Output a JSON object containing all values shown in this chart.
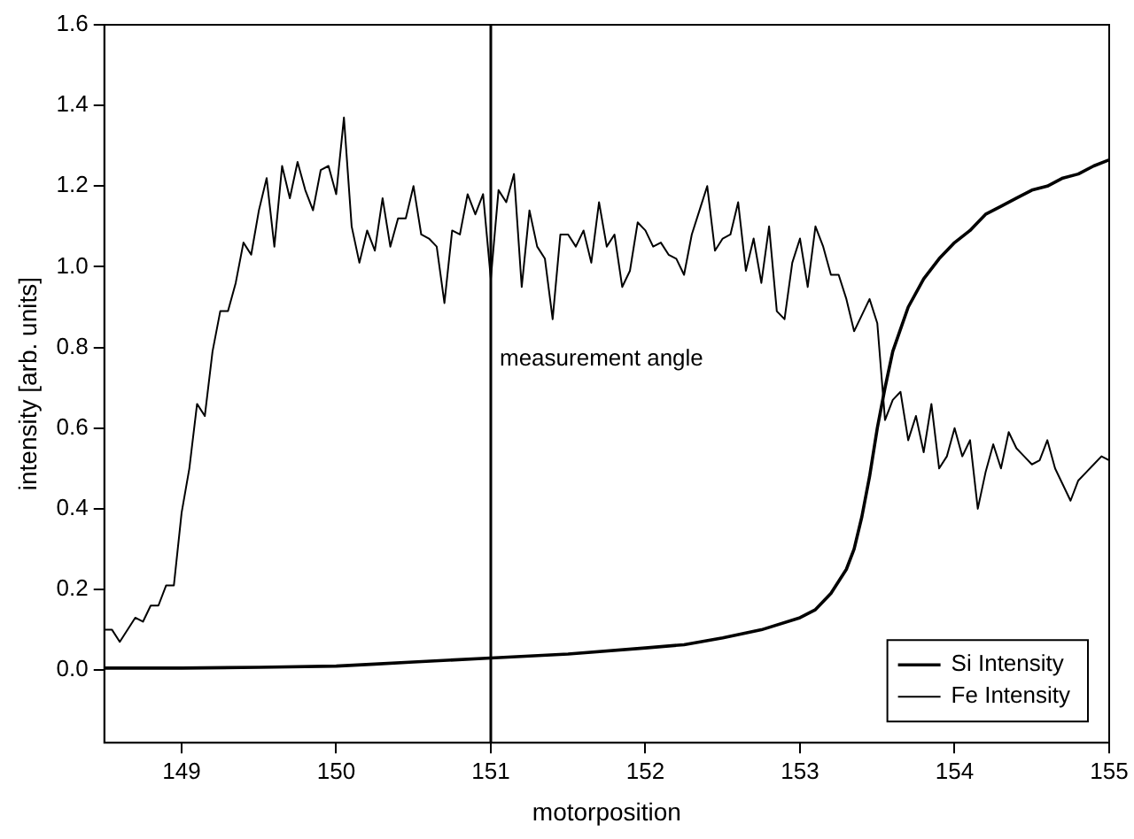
{
  "chart_data": {
    "type": "line",
    "xlabel": "motorposition",
    "ylabel": "intensity [arb. units]",
    "xlim": [
      148.5,
      155
    ],
    "xticks": [
      149,
      150,
      151,
      152,
      153,
      154,
      155
    ],
    "ylim": [
      -0.18,
      1.6
    ],
    "yticks": [
      {
        "value": 0,
        "label": "0.0"
      },
      {
        "value": 0.2,
        "label": "0.2"
      },
      {
        "value": 0.4,
        "label": "0.4"
      },
      {
        "value": 0.6,
        "label": "0.6"
      },
      {
        "value": 0.8,
        "label": "0.8"
      },
      {
        "value": 1,
        "label": "1.0"
      },
      {
        "value": 1.2,
        "label": "1.2"
      },
      {
        "value": 1.4,
        "label": "1.4"
      },
      {
        "value": 1.6,
        "label": "1.6"
      }
    ],
    "grid": false,
    "legend": "bottom right",
    "marker": "none",
    "line_style": "solid",
    "ref_lines": [
      {
        "axis": "x",
        "value": 151,
        "label": "measurement angle",
        "color": "#000000"
      }
    ],
    "series": [
      {
        "name": "Si Intensity",
        "color": "#000000",
        "x": [
          148.5,
          149,
          149.5,
          150,
          150.25,
          150.5,
          151,
          151.5,
          152,
          152.25,
          152.5,
          152.75,
          153,
          153.1,
          153.2,
          153.3,
          153.35,
          153.4,
          153.45,
          153.5,
          153.55,
          153.6,
          153.7,
          153.8,
          153.9,
          154,
          154.1,
          154.2,
          154.3,
          154.4,
          154.5,
          154.6,
          154.7,
          154.8,
          154.9,
          155
        ],
        "values": [
          0.005,
          0.005,
          0.007,
          0.01,
          0.015,
          0.02,
          0.03,
          0.04,
          0.055,
          0.063,
          0.08,
          0.1,
          0.13,
          0.15,
          0.19,
          0.25,
          0.3,
          0.38,
          0.48,
          0.6,
          0.7,
          0.79,
          0.9,
          0.97,
          1.02,
          1.06,
          1.09,
          1.13,
          1.15,
          1.17,
          1.19,
          1.2,
          1.22,
          1.23,
          1.25,
          1.265
        ]
      },
      {
        "name": "Fe Intensity",
        "color": "#000000",
        "x": [
          148.5,
          148.55,
          148.6,
          148.7,
          148.75,
          148.8,
          148.85,
          148.9,
          148.95,
          149,
          149.05,
          149.1,
          149.15,
          149.2,
          149.25,
          149.3,
          149.35,
          149.4,
          149.45,
          149.5,
          149.55,
          149.6,
          149.65,
          149.7,
          149.75,
          149.8,
          149.85,
          149.9,
          149.95,
          150,
          150.05,
          150.1,
          150.15,
          150.2,
          150.25,
          150.3,
          150.35,
          150.4,
          150.45,
          150.5,
          150.55,
          150.6,
          150.65,
          150.7,
          150.75,
          150.8,
          150.85,
          150.9,
          150.95,
          151,
          151.05,
          151.1,
          151.15,
          151.2,
          151.25,
          151.3,
          151.35,
          151.4,
          151.45,
          151.5,
          151.55,
          151.6,
          151.65,
          151.7,
          151.75,
          151.8,
          151.85,
          151.9,
          151.95,
          152,
          152.05,
          152.1,
          152.15,
          152.2,
          152.25,
          152.3,
          152.35,
          152.4,
          152.45,
          152.5,
          152.55,
          152.6,
          152.65,
          152.7,
          152.75,
          152.8,
          152.85,
          152.9,
          152.95,
          153,
          153.05,
          153.1,
          153.15,
          153.2,
          153.25,
          153.3,
          153.35,
          153.4,
          153.45,
          153.5,
          153.55,
          153.6,
          153.65,
          153.7,
          153.75,
          153.8,
          153.85,
          153.9,
          153.95,
          154,
          154.05,
          154.1,
          154.15,
          154.2,
          154.25,
          154.3,
          154.35,
          154.4,
          154.45,
          154.5,
          154.55,
          154.6,
          154.65,
          154.7,
          154.75,
          154.8,
          154.85,
          154.9,
          154.95,
          155
        ],
        "values": [
          0.1,
          0.1,
          0.07,
          0.13,
          0.12,
          0.16,
          0.16,
          0.21,
          0.21,
          0.39,
          0.5,
          0.66,
          0.63,
          0.79,
          0.89,
          0.89,
          0.96,
          1.06,
          1.03,
          1.14,
          1.22,
          1.05,
          1.25,
          1.17,
          1.26,
          1.19,
          1.14,
          1.24,
          1.25,
          1.18,
          1.37,
          1.1,
          1.01,
          1.09,
          1.04,
          1.17,
          1.05,
          1.12,
          1.12,
          1.2,
          1.08,
          1.07,
          1.05,
          0.91,
          1.09,
          1.08,
          1.18,
          1.13,
          1.18,
          0.97,
          1.19,
          1.16,
          1.23,
          0.95,
          1.14,
          1.05,
          1.02,
          0.87,
          1.08,
          1.08,
          1.05,
          1.09,
          1.01,
          1.16,
          1.05,
          1.08,
          0.95,
          0.99,
          1.11,
          1.09,
          1.05,
          1.06,
          1.03,
          1.02,
          0.98,
          1.08,
          1.14,
          1.2,
          1.04,
          1.07,
          1.08,
          1.16,
          0.99,
          1.07,
          0.96,
          1.1,
          0.89,
          0.87,
          1.01,
          1.07,
          0.95,
          1.1,
          1.05,
          0.98,
          0.98,
          0.92,
          0.84,
          0.88,
          0.92,
          0.86,
          0.62,
          0.67,
          0.69,
          0.57,
          0.63,
          0.54,
          0.66,
          0.5,
          0.53,
          0.6,
          0.53,
          0.57,
          0.4,
          0.49,
          0.56,
          0.5,
          0.59,
          0.55,
          0.53,
          0.51,
          0.52,
          0.57,
          0.5,
          0.46,
          0.42,
          0.47,
          0.49,
          0.51,
          0.53,
          0.52
        ]
      }
    ]
  }
}
